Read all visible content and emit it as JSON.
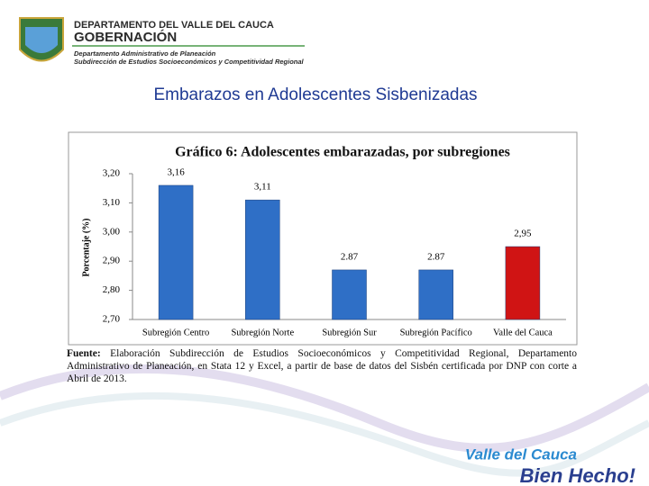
{
  "header": {
    "line1": "DEPARTAMENTO DEL VALLE DEL CAUCA",
    "line2": "GOBERNACIÓN",
    "line3": "Departamento  Administrativo de Planeación",
    "line4": "Subdirección de Estudios Socioeconómicos y Competitividad Regional"
  },
  "slide_title": "Embarazos en Adolescentes Sisbenizadas",
  "chart_data": {
    "type": "bar",
    "title": "Gráfico 6: Adolescentes embarazadas, por subregiones",
    "y_label": "Porcentaje (%)",
    "categories": [
      "Subregión Centro",
      "Subregión Norte",
      "Subregión Sur",
      "Subregión Pacífico",
      "Valle del Cauca"
    ],
    "values": [
      3.16,
      3.11,
      2.87,
      2.87,
      2.95
    ],
    "value_labels": [
      "3,16",
      "3,11",
      "2.87",
      "2.87",
      "2,95"
    ],
    "colors": [
      "#2f6fc6",
      "#2f6fc6",
      "#2f6fc6",
      "#2f6fc6",
      "#d01414"
    ],
    "ylim": [
      2.7,
      3.2
    ],
    "yticks": [
      {
        "value": 2.7,
        "label": "2,70"
      },
      {
        "value": 2.8,
        "label": "2,80"
      },
      {
        "value": 2.9,
        "label": "2,90"
      },
      {
        "value": 3.0,
        "label": "3,00"
      },
      {
        "value": 3.1,
        "label": "3,10"
      },
      {
        "value": 3.2,
        "label": "3,20"
      }
    ]
  },
  "source": {
    "label": "Fuente:",
    "text": "Elaboración Subdirección de Estudios Socioeconómicos y Competitividad Regional, Departamento Administrativo de Planeación, en Stata 12 y Excel, a partir de base de datos del Sisbén certificada por DNP con corte a Abril de 2013."
  },
  "logo": {
    "line1": "Valle del Cauca",
    "line2": "Bien Hecho!"
  }
}
